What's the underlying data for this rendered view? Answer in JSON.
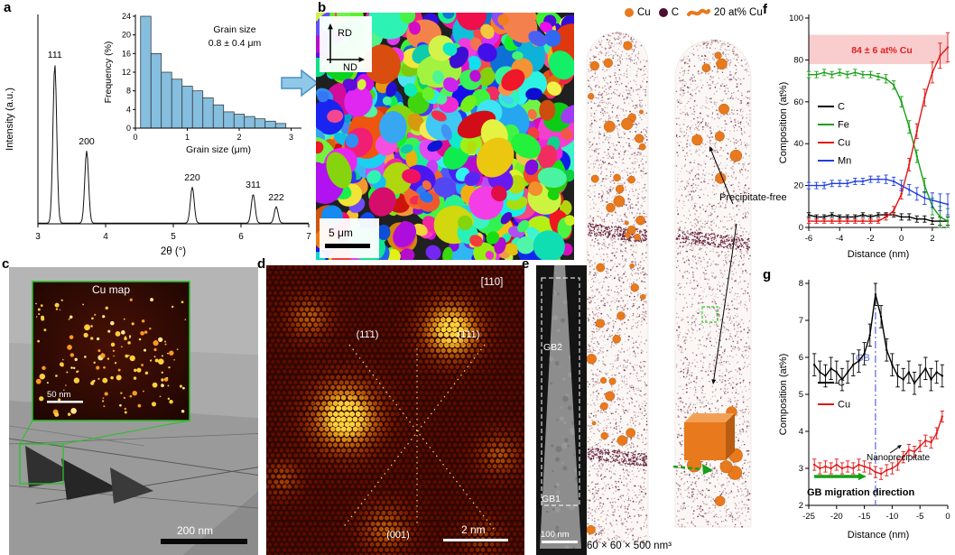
{
  "figure": {
    "panel_labels": {
      "a": "a",
      "b": "b",
      "c": "c",
      "d": "d",
      "e": "e",
      "f": "f",
      "g": "g"
    }
  },
  "panel_b": {
    "axis_vertical": "RD",
    "axis_horizontal": "ND",
    "scale_bar": "5 μm"
  },
  "panel_c": {
    "inset_title": "Cu map",
    "inset_scale_bar": "50 nm",
    "scale_bar": "200 nm"
  },
  "panel_d": {
    "zone_axis": "[110]",
    "plane_left": "(11̄1)",
    "plane_right": "(1̄11)",
    "plane_bottom": "(001)",
    "scale_bar": "2 nm"
  },
  "panel_e": {
    "tem": {
      "gb_top": "GB2",
      "gb_bottom": "GB1",
      "scale_bar": "100 nm"
    },
    "legend": [
      {
        "label": "Cu",
        "marker": "dot",
        "color": "#e8791c"
      },
      {
        "label": "C",
        "marker": "dot",
        "color": "#4d0f2e"
      },
      {
        "label": "20 at% Cu",
        "marker": "isosurface",
        "color": "#e8791c"
      }
    ],
    "needle_left": {
      "gb_top": "GB2",
      "gb_bottom": "GB1"
    },
    "annotation_precipitate_free": "Precipitate-free",
    "dimensions_caption": "60 × 60 × 500 nm³"
  },
  "chart_data": [
    {
      "id": "xrd",
      "type": "line",
      "xlabel": "2θ (°)",
      "ylabel": "Intensity (a.u.)",
      "xlim": [
        3,
        7
      ],
      "xticks": [
        3,
        4,
        5,
        6,
        7
      ],
      "peaks": [
        {
          "label": "111",
          "x": 3.25,
          "rel_height": 0.88
        },
        {
          "label": "200",
          "x": 3.72,
          "rel_height": 0.4
        },
        {
          "label": "220",
          "x": 5.28,
          "rel_height": 0.2
        },
        {
          "label": "311",
          "x": 6.18,
          "rel_height": 0.16
        },
        {
          "label": "222",
          "x": 6.52,
          "rel_height": 0.09
        }
      ]
    },
    {
      "id": "grain_hist",
      "type": "bar",
      "xlabel": "Grain size (μm)",
      "ylabel": "Frequency (%)",
      "annotation": [
        "Grain size",
        "0.8 ± 0.4 μm"
      ],
      "xlim": [
        0,
        3.2
      ],
      "ylim": [
        0,
        24
      ],
      "xticks": [
        0,
        1,
        2,
        3
      ],
      "yticks": [
        0,
        4,
        8,
        12,
        16,
        20,
        24
      ],
      "bar_color": "#85bede",
      "bin_start": 0.1,
      "bin_width": 0.2,
      "values": [
        24,
        16,
        12,
        10.5,
        9,
        8,
        6.5,
        5,
        3.5,
        3,
        2.5,
        2,
        1.5,
        1
      ]
    },
    {
      "id": "apt_profile_gb",
      "type": "line",
      "xlabel": "Distance (nm)",
      "ylabel": "Composition (at%)",
      "xlim": [
        -6,
        3
      ],
      "ylim": [
        0,
        100
      ],
      "xticks": [
        -6,
        -4,
        -2,
        0,
        2
      ],
      "yticks": [
        0,
        20,
        40,
        60,
        80,
        100
      ],
      "band": {
        "y_from": 78,
        "y_to": 92,
        "label": "84 ± 6 at% Cu",
        "fill": "#f7c0c0",
        "text_color": "#e02020"
      },
      "x": [
        -6,
        -5.5,
        -5,
        -4.5,
        -4,
        -3.5,
        -3,
        -2.5,
        -2,
        -1.5,
        -1,
        -0.5,
        0,
        0.5,
        1,
        1.5,
        2,
        2.5,
        3
      ],
      "series": [
        {
          "name": "C",
          "color": "#000000",
          "y": [
            6,
            5,
            5,
            6,
            5,
            5,
            5,
            6,
            5,
            6,
            6,
            6,
            5,
            5,
            4,
            4,
            3,
            3,
            3
          ],
          "err": [
            1,
            1,
            1,
            1,
            1,
            1,
            1,
            1,
            1,
            1,
            1,
            1,
            1.5,
            1.5,
            1.5,
            1.5,
            1.5,
            2,
            2
          ]
        },
        {
          "name": "Fe",
          "color": "#18a018",
          "y": [
            73,
            73,
            74,
            73,
            74,
            73,
            74,
            73,
            73,
            72,
            71,
            68,
            60,
            48,
            34,
            20,
            10,
            5,
            3
          ],
          "err": [
            1.5,
            1.5,
            1.5,
            1.5,
            1.5,
            1.5,
            1.5,
            1.5,
            1.5,
            1.5,
            2,
            2,
            2.5,
            3,
            3,
            3.5,
            4,
            5,
            6
          ]
        },
        {
          "name": "Cu",
          "color": "#e01818",
          "y": [
            3,
            3,
            3,
            3,
            3,
            3,
            3,
            3,
            3,
            3,
            5,
            8,
            16,
            30,
            46,
            62,
            74,
            82,
            86
          ],
          "err": [
            1,
            1,
            1,
            1,
            1,
            1,
            1,
            1,
            1,
            1,
            1.5,
            2,
            2.5,
            3,
            3.5,
            4,
            5,
            6,
            7
          ]
        },
        {
          "name": "Mn",
          "color": "#2040dd",
          "y": [
            20,
            20,
            20,
            21,
            21,
            21,
            22,
            22,
            23,
            23,
            23,
            22,
            20,
            18,
            16,
            14,
            13,
            12,
            11
          ],
          "err": [
            1.5,
            1.5,
            1.5,
            1.5,
            1.5,
            1.5,
            1.5,
            1.5,
            1.5,
            1.5,
            2,
            2,
            2.5,
            2.5,
            3,
            3,
            3.5,
            4,
            5
          ]
        }
      ]
    },
    {
      "id": "apt_profile_migration",
      "type": "line",
      "xlabel": "Distance (nm)",
      "ylabel": "Composition (at%)",
      "xlim": [
        -25,
        0
      ],
      "ylim": [
        2,
        8
      ],
      "xticks": [
        -25,
        -20,
        -15,
        -10,
        -5,
        0
      ],
      "yticks": [
        2,
        3,
        4,
        5,
        6,
        7,
        8
      ],
      "gb_marker": {
        "x": -13,
        "label": "GB",
        "color": "#5566e0"
      },
      "x": [
        -24,
        -23,
        -22,
        -21,
        -20,
        -19,
        -18,
        -17,
        -16,
        -15,
        -14,
        -13,
        -12,
        -11,
        -10,
        -9,
        -8,
        -7,
        -6,
        -5,
        -4,
        -3,
        -2,
        -1
      ],
      "series": [
        {
          "name": "C",
          "color": "#000000",
          "err_value": 0.3,
          "y": [
            5.8,
            5.6,
            5.5,
            5.7,
            5.6,
            5.4,
            5.6,
            5.8,
            5.9,
            6.1,
            6.6,
            7.7,
            7.1,
            6.2,
            5.8,
            5.5,
            5.4,
            5.6,
            5.3,
            5.5,
            5.7,
            5.4,
            5.6,
            5.5
          ]
        },
        {
          "name": "Cu",
          "color": "#e01818",
          "err_value": 0.15,
          "y": [
            3.1,
            3.0,
            3.05,
            3.0,
            3.1,
            3.0,
            3.05,
            3.0,
            3.1,
            3.05,
            3.0,
            2.9,
            2.85,
            2.95,
            3.0,
            3.1,
            3.3,
            3.5,
            3.45,
            3.6,
            3.75,
            3.7,
            3.95,
            4.4
          ]
        }
      ],
      "annotations": {
        "nanoprecipitate": "Nanoprecipitate",
        "migration": "GB migration direction",
        "migration_color": "#16a016"
      }
    }
  ]
}
